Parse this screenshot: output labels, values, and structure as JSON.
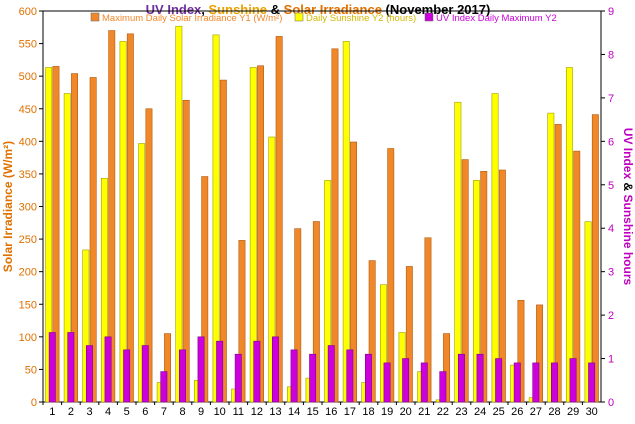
{
  "chart_data": {
    "type": "bar",
    "title": {
      "parts": [
        {
          "text": "UV Index",
          "color": "#7030a0"
        },
        {
          "text": ", ",
          "color": "#000000"
        },
        {
          "text": "Sunshine",
          "color": "#e8a200"
        },
        {
          "text": " & ",
          "color": "#000000"
        },
        {
          "text": "Solar Irradiance",
          "color": "#e07000"
        },
        {
          "text": " (November 2017)",
          "color": "#000000"
        }
      ]
    },
    "ylabel_left": "Solar Irradiance (W/m²)",
    "ylabel_right": {
      "parts": [
        {
          "text": "UV Index",
          "color": "#c000c0"
        },
        {
          "text": " & ",
          "color": "#000000"
        },
        {
          "text": "Sunshine hours",
          "color": "#c000c0"
        }
      ]
    },
    "ylim_left": [
      0,
      600
    ],
    "ylim_right": [
      0,
      9
    ],
    "yticks_left": [
      "0",
      "50",
      "100",
      "150",
      "200",
      "250",
      "300",
      "350",
      "400",
      "450",
      "500",
      "550",
      "600"
    ],
    "yticks_right": [
      "0",
      "1",
      "2",
      "3",
      "4",
      "5",
      "6",
      "7",
      "8",
      "9"
    ],
    "categories": [
      "1",
      "2",
      "3",
      "4",
      "5",
      "6",
      "7",
      "8",
      "9",
      "10",
      "11",
      "12",
      "13",
      "14",
      "15",
      "16",
      "17",
      "18",
      "19",
      "20",
      "21",
      "22",
      "23",
      "24",
      "25",
      "26",
      "27",
      "28",
      "29",
      "30"
    ],
    "legend_placement": "top",
    "grid": false,
    "series": [
      {
        "name": "Maximum Daily Solar Irradiance Y1 (W/m²)",
        "axis": "left",
        "color": "#f0882a",
        "values": [
          515,
          504,
          498,
          570,
          565,
          450,
          105,
          463,
          346,
          494,
          248,
          516,
          561,
          266,
          277,
          542,
          399,
          217,
          389,
          208,
          252,
          105,
          372,
          354,
          356,
          156,
          149,
          426,
          385,
          441
        ]
      },
      {
        "name": "Daily Sunshine Y2 (hours)",
        "axis": "right",
        "color": "#ffff00",
        "values": [
          7.7,
          7.1,
          3.5,
          5.15,
          8.3,
          5.95,
          0.45,
          8.65,
          0.5,
          8.45,
          0.3,
          7.7,
          6.1,
          0.35,
          0.55,
          5.1,
          8.3,
          0.45,
          2.7,
          1.6,
          0.7,
          0.05,
          6.9,
          5.1,
          7.1,
          0.85,
          0.1,
          6.65,
          7.7,
          4.15
        ]
      },
      {
        "name": "UV Index Daily Maximum Y2",
        "axis": "right",
        "color": "#cc00dd",
        "values": [
          1.6,
          1.6,
          1.3,
          1.5,
          1.2,
          1.3,
          0.7,
          1.2,
          1.5,
          1.4,
          1.1,
          1.4,
          1.5,
          1.2,
          1.1,
          1.3,
          1.2,
          1.1,
          0.9,
          1.0,
          0.9,
          0.7,
          1.1,
          1.1,
          1.0,
          0.9,
          0.9,
          0.9,
          1.0,
          0.9
        ]
      }
    ]
  }
}
